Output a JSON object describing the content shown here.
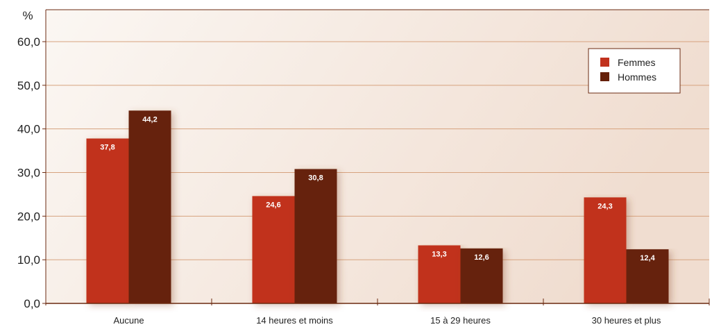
{
  "chart_data": {
    "type": "bar",
    "unit": "%",
    "categories": [
      "Aucune",
      "14 heures et moins",
      "15 à 29 heures",
      "30 heures et plus"
    ],
    "series": [
      {
        "name": "Femmes",
        "values": [
          37.8,
          24.6,
          13.3,
          24.3
        ],
        "labels": [
          "37,8",
          "24,6",
          "13,3",
          "24,3"
        ],
        "color": "#c1311d"
      },
      {
        "name": "Hommes",
        "values": [
          44.2,
          30.8,
          12.6,
          12.4
        ],
        "labels": [
          "44,2",
          "30,8",
          "12,6",
          "12,4"
        ],
        "color": "#66200a"
      }
    ],
    "ylim": [
      0,
      60
    ],
    "yticks": [
      0,
      10,
      20,
      30,
      40,
      50,
      60
    ],
    "ytick_labels": [
      "0,0",
      "10,0",
      "20,0",
      "30,0",
      "40,0",
      "50,0",
      "60,0"
    ],
    "grid": true,
    "legend_position": "top-right",
    "colors": {
      "grid": "#d6a27e",
      "axis": "#6b2a10",
      "frame": "#6b2a10"
    }
  }
}
